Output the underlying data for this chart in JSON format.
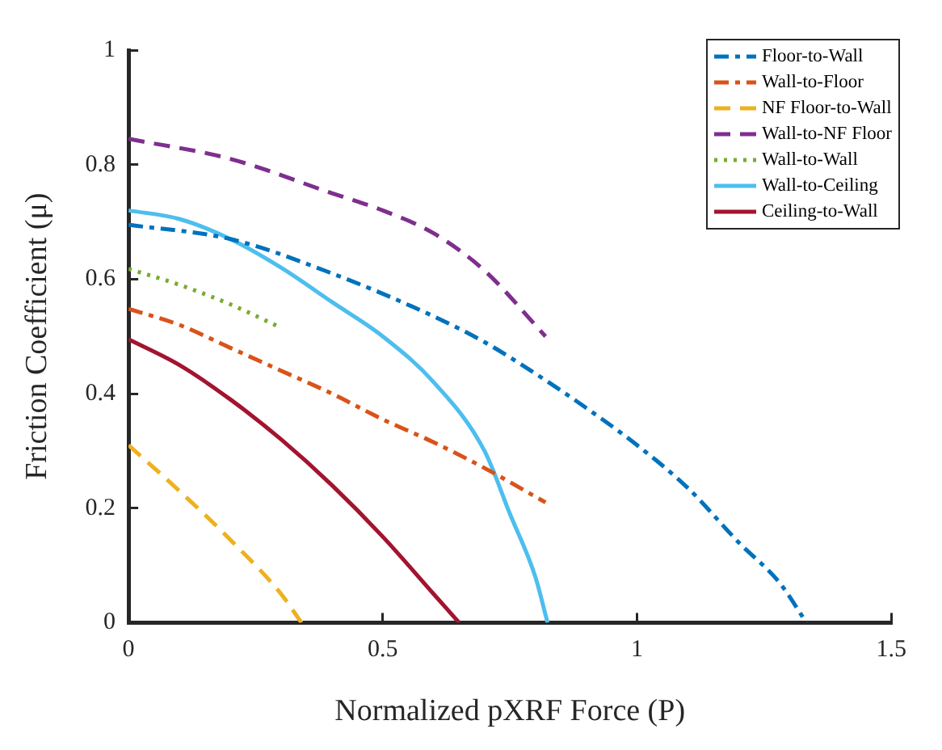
{
  "chart_data": {
    "type": "line",
    "xlabel": "Normalized pXRF Force (P)",
    "ylabel": "Friction Coefficient (μ)",
    "xlim": [
      0,
      1.5
    ],
    "xticks": [
      0,
      0.5,
      1,
      1.5
    ],
    "ylim": [
      0,
      1
    ],
    "yticks": [
      0,
      0.2,
      0.4,
      0.6,
      0.8,
      1
    ],
    "grid": false,
    "legend": "top right",
    "marker": "none",
    "series": [
      {
        "name": "Floor-to-Wall",
        "color": "#0072bd",
        "line_style": "dashdot",
        "x": [
          0,
          0.2,
          0.4,
          0.6,
          0.7,
          0.8,
          0.9,
          1.0,
          1.1,
          1.2,
          1.28,
          1.333
        ],
        "values": [
          0.695,
          0.67,
          0.61,
          0.535,
          0.49,
          0.435,
          0.375,
          0.31,
          0.235,
          0.14,
          0.07,
          0
        ]
      },
      {
        "name": "Wall-to-Floor",
        "color": "#d95319",
        "line_style": "dashdot",
        "x": [
          0,
          0.1,
          0.2,
          0.3,
          0.4,
          0.5,
          0.6,
          0.7,
          0.82
        ],
        "values": [
          0.548,
          0.52,
          0.48,
          0.44,
          0.4,
          0.355,
          0.315,
          0.27,
          0.21
        ]
      },
      {
        "name": "NF Floor-to-Wall",
        "color": "#edb120",
        "line_style": "dashed",
        "x": [
          0,
          0.1,
          0.2,
          0.3,
          0.34
        ],
        "values": [
          0.31,
          0.23,
          0.145,
          0.05,
          0
        ]
      },
      {
        "name": "Wall-to-NF Floor",
        "color": "#7e2f8e",
        "line_style": "dashed",
        "x": [
          0,
          0.2,
          0.4,
          0.5,
          0.6,
          0.7,
          0.82
        ],
        "values": [
          0.845,
          0.81,
          0.75,
          0.72,
          0.68,
          0.615,
          0.5
        ]
      },
      {
        "name": "Wall-to-Wall",
        "color": "#77ac30",
        "line_style": "dotted",
        "x": [
          0,
          0.1,
          0.2,
          0.3
        ],
        "values": [
          0.618,
          0.59,
          0.556,
          0.515
        ]
      },
      {
        "name": "Wall-to-Ceiling",
        "color": "#4dbeee",
        "line_style": "solid",
        "x": [
          0,
          0.1,
          0.2,
          0.3,
          0.4,
          0.5,
          0.6,
          0.7,
          0.75,
          0.8,
          0.824
        ],
        "values": [
          0.72,
          0.705,
          0.67,
          0.62,
          0.56,
          0.5,
          0.42,
          0.3,
          0.19,
          0.08,
          0
        ]
      },
      {
        "name": "Ceiling-to-Wall",
        "color": "#a2142f",
        "line_style": "solid",
        "x": [
          0,
          0.1,
          0.2,
          0.3,
          0.4,
          0.5,
          0.6,
          0.65
        ],
        "values": [
          0.495,
          0.45,
          0.39,
          0.32,
          0.24,
          0.15,
          0.05,
          0
        ]
      }
    ]
  }
}
